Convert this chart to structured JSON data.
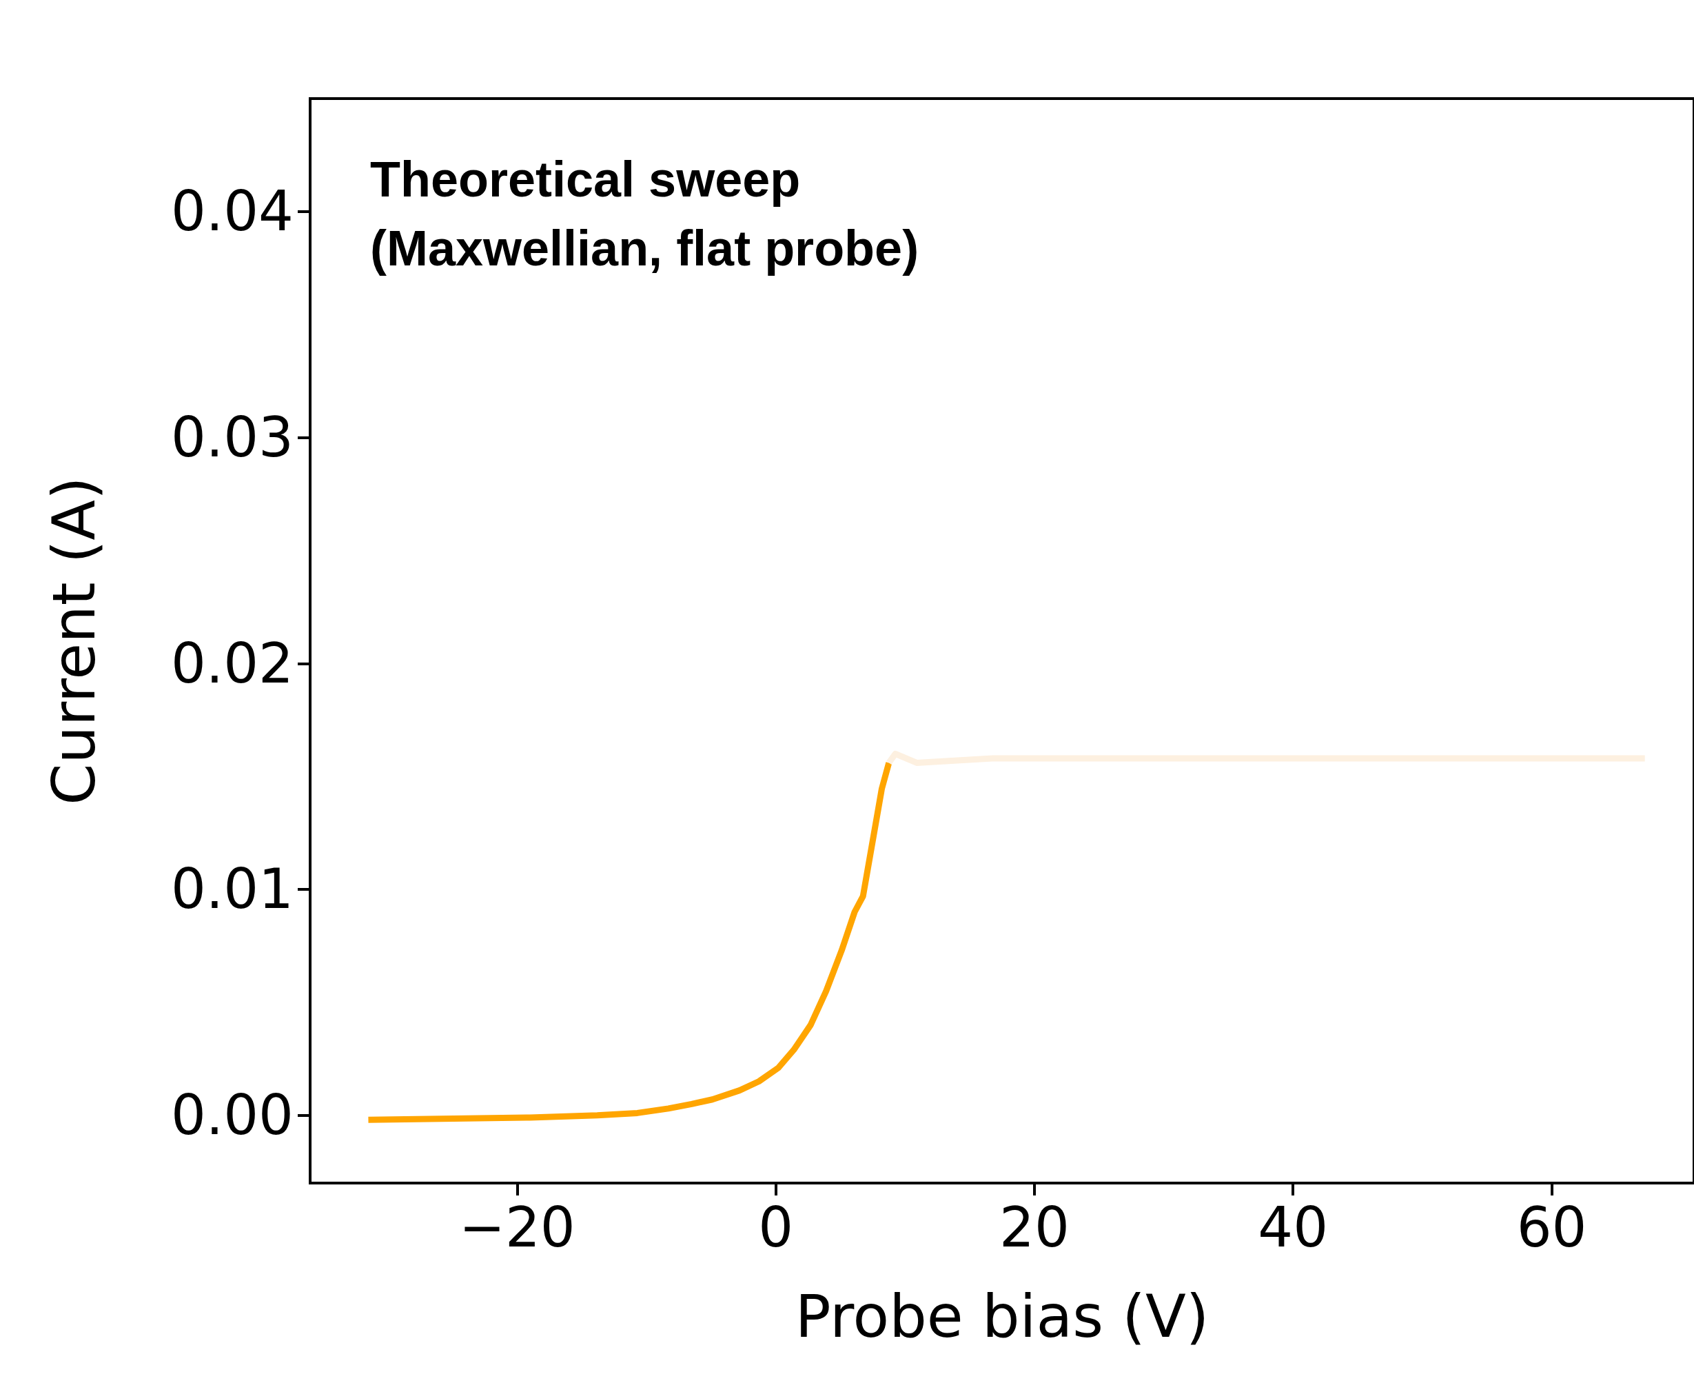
{
  "chart_data": {
    "type": "line",
    "xlabel": "Probe bias (V)",
    "ylabel": "Current (A)",
    "annotations": [
      "Theoretical sweep\n(Maxwellian, flat probe)"
    ],
    "xlim": [
      -36,
      71
    ],
    "xticks": [
      {
        "value": -20,
        "label": "−20"
      },
      0,
      20,
      40,
      60
    ],
    "ylim": [
      -0.003,
      0.045
    ],
    "yticks": [
      {
        "value": 0,
        "label": "0.00"
      },
      {
        "value": 0.01,
        "label": "0.01"
      },
      {
        "value": 0.02,
        "label": "0.02"
      },
      {
        "value": 0.03,
        "label": "0.03"
      },
      {
        "value": 0.04,
        "label": "0.04"
      }
    ],
    "grid": false,
    "marker": "none",
    "line_style": "solid",
    "series": [
      {
        "color": "#ffa500",
        "x": [
          -31.5,
          -19,
          -13.8,
          -10.7,
          -8.3,
          -6.5,
          -4.9,
          -2.8,
          -1.3,
          0.2,
          1.4,
          2.7,
          3.9,
          5.1,
          6.1,
          6.75,
          8.2,
          8.75
        ],
        "values": [
          -0.0002,
          -0.0001,
          0,
          0.0001,
          0.0003,
          0.0005,
          0.0007,
          0.0011,
          0.0015,
          0.0021,
          0.0029,
          0.004,
          0.0055,
          0.0073,
          0.009,
          0.0097,
          0.01445,
          0.0156
        ]
      },
      {
        "color": "#fdf0e0",
        "x": [
          8.75,
          9.25,
          10.9,
          16.75,
          67.2
        ],
        "values": [
          0.0156,
          0.016,
          0.0156,
          0.0158,
          0.0158
        ]
      }
    ]
  }
}
